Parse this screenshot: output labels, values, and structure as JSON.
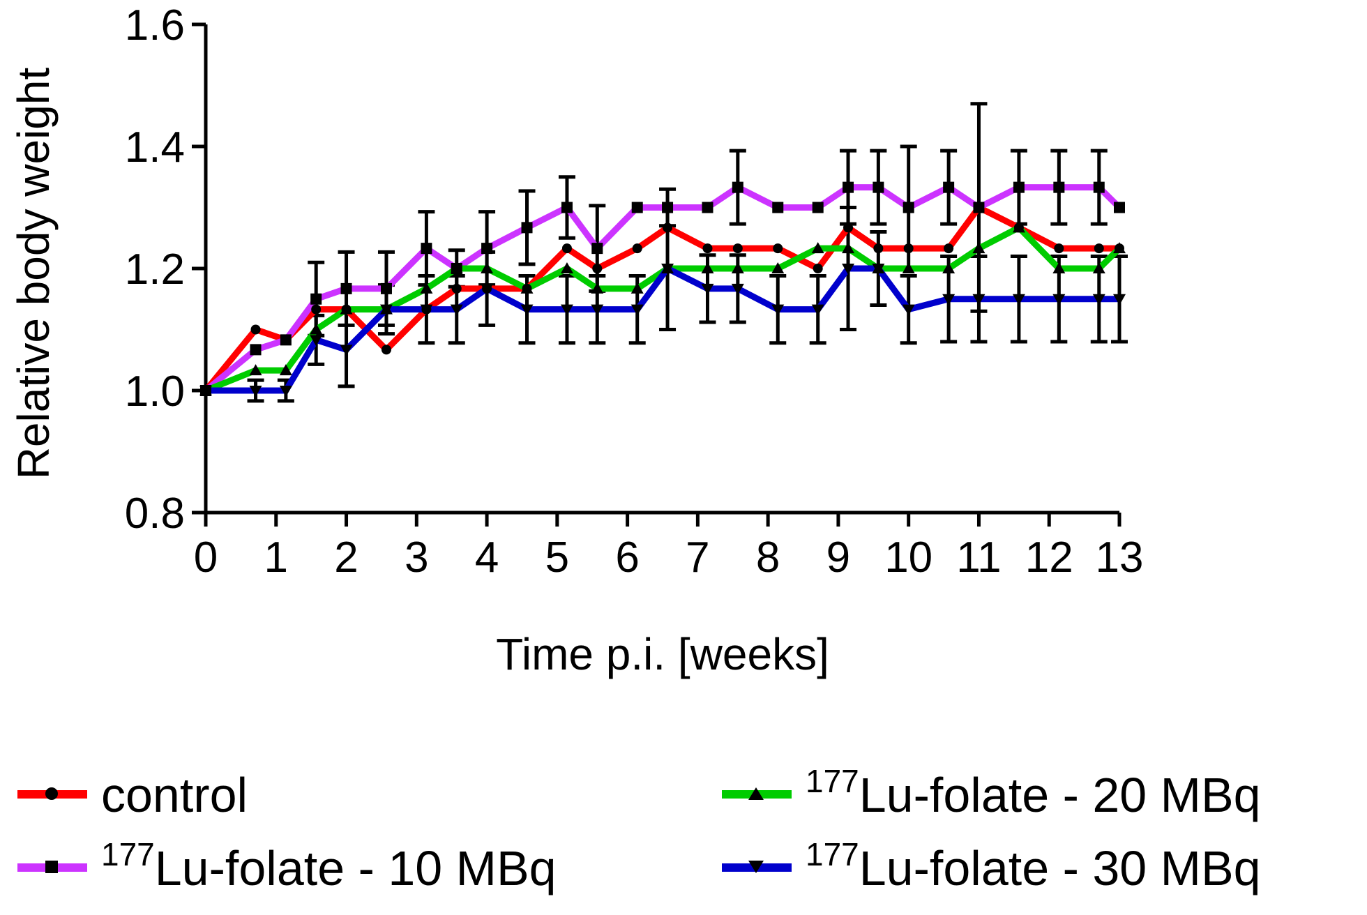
{
  "chart_data": {
    "type": "line",
    "title": "",
    "xlabel": "Time p.i. [weeks]",
    "ylabel": "Relative body weight",
    "xlim": [
      0,
      13
    ],
    "ylim": [
      0.8,
      1.6
    ],
    "xticks": [
      "0",
      "1",
      "2",
      "3",
      "4",
      "5",
      "6",
      "7",
      "8",
      "9",
      "10",
      "11",
      "12",
      "13"
    ],
    "yticks": [
      "0.8",
      "1.0",
      "1.2",
      "1.4",
      "1.6"
    ],
    "x": [
      0,
      0.71,
      1.14,
      1.57,
      2,
      2.57,
      3.14,
      3.57,
      4,
      4.57,
      5.14,
      5.57,
      6.14,
      6.57,
      7.14,
      7.57,
      8.14,
      8.71,
      9.14,
      9.57,
      10,
      10.57,
      11,
      11.57,
      12.14,
      12.71,
      13
    ],
    "legend_position": "bottom",
    "series": [
      {
        "name": "control",
        "sup": "",
        "label": "control",
        "color": "#ff0000",
        "marker": "circle",
        "values": [
          1.0,
          1.1,
          1.083,
          1.133,
          1.133,
          1.067,
          1.133,
          1.167,
          1.167,
          1.167,
          1.233,
          1.2,
          1.233,
          1.267,
          1.233,
          1.233,
          1.233,
          1.2,
          1.267,
          1.233,
          1.233,
          1.233,
          1.3,
          1.267,
          1.233,
          1.233,
          1.233
        ],
        "errors": [
          0,
          0,
          0,
          0,
          0,
          0,
          0,
          0,
          0,
          0,
          0,
          0,
          0,
          0,
          0,
          0,
          0,
          0,
          0,
          0,
          0,
          0,
          0,
          0,
          0,
          0,
          0
        ]
      },
      {
        "name": "177Lu-folate - 10 MBq",
        "sup": "177",
        "label": "Lu-folate - 10 MBq",
        "color": "#cc33ff",
        "marker": "square",
        "values": [
          1.0,
          1.067,
          1.083,
          1.15,
          1.167,
          1.167,
          1.233,
          1.2,
          1.233,
          1.267,
          1.3,
          1.233,
          1.3,
          1.3,
          1.3,
          1.333,
          1.3,
          1.3,
          1.333,
          1.333,
          1.3,
          1.333,
          1.3,
          1.333,
          1.333,
          1.333,
          1.3
        ],
        "errors": [
          0,
          0,
          0,
          0.06,
          0.06,
          0.06,
          0.06,
          0.03,
          0.06,
          0.06,
          0.05,
          0.07,
          0,
          0.03,
          0,
          0.06,
          0,
          0,
          0.06,
          0.06,
          0.1,
          0.06,
          0.17,
          0.06,
          0.06,
          0.06,
          0
        ]
      },
      {
        "name": "177Lu-folate - 20 MBq",
        "sup": "177",
        "label": "Lu-folate - 20 MBq",
        "color": "#00cc00",
        "marker": "triangle-up",
        "values": [
          1.0,
          1.033,
          1.033,
          1.1,
          1.133,
          1.133,
          1.167,
          1.2,
          1.2,
          1.167,
          1.2,
          1.167,
          1.167,
          1.2,
          1.2,
          1.2,
          1.2,
          1.233,
          1.233,
          1.2,
          1.2,
          1.2,
          1.233,
          1.267,
          1.2,
          1.2,
          1.233
        ],
        "errors": [
          0,
          0,
          0,
          0,
          0,
          0,
          0,
          0,
          0,
          0,
          0,
          0,
          0,
          0,
          0,
          0,
          0,
          0,
          0,
          0,
          0,
          0,
          0,
          0,
          0,
          0,
          0
        ]
      },
      {
        "name": "177Lu-folate - 30 MBq",
        "sup": "177",
        "label": "Lu-folate - 30 MBq",
        "color": "#0000cc",
        "marker": "triangle-down",
        "values": [
          1.0,
          1.0,
          1.0,
          1.083,
          1.067,
          1.133,
          1.133,
          1.133,
          1.167,
          1.133,
          1.133,
          1.133,
          1.133,
          1.2,
          1.167,
          1.167,
          1.133,
          1.133,
          1.2,
          1.2,
          1.133,
          1.15,
          1.15,
          1.15,
          1.15,
          1.15,
          1.15
        ],
        "errors": [
          0,
          0.017,
          0.017,
          0.04,
          0.06,
          0.04,
          0.055,
          0.055,
          0.06,
          0.055,
          0.055,
          0.055,
          0.055,
          0.1,
          0.055,
          0.055,
          0.055,
          0.055,
          0.1,
          0.06,
          0.055,
          0.07,
          0.07,
          0.07,
          0.07,
          0.07,
          0.07
        ]
      }
    ]
  }
}
